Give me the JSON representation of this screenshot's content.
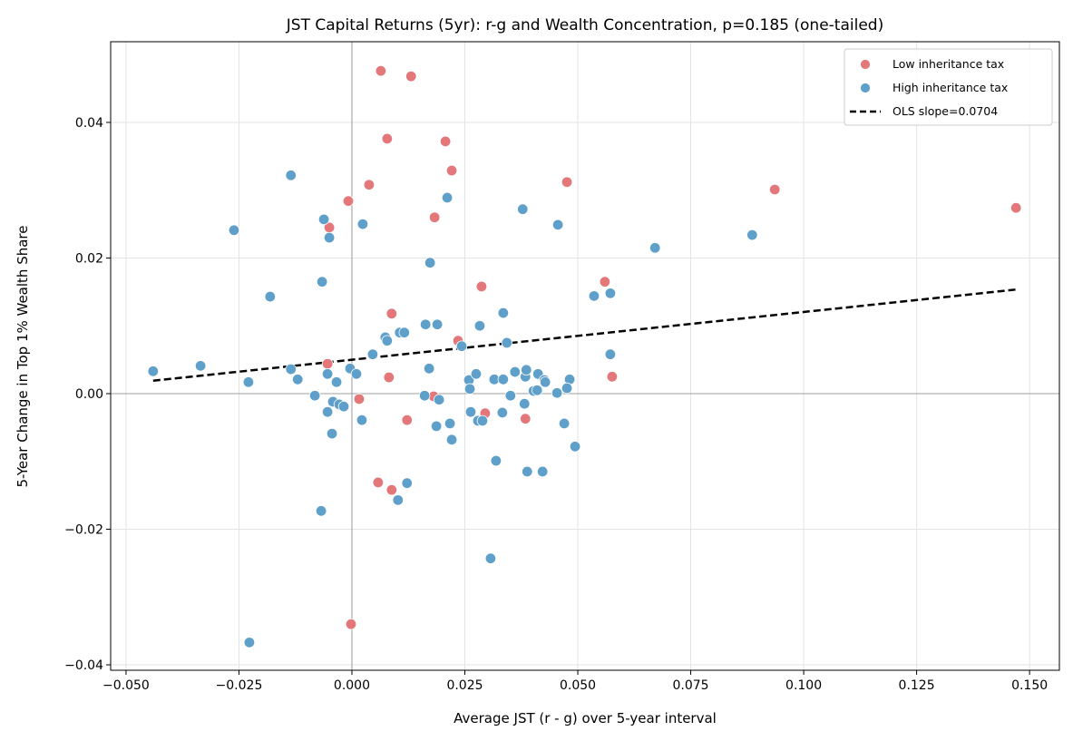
{
  "chart_data": {
    "type": "scatter",
    "title": "JST Capital Returns (5yr): r-g and Wealth Concentration, p=0.185 (one-tailed)",
    "xlabel": "Average JST (r - g) over 5-year interval",
    "ylabel": "5-Year Change in Top 1% Wealth Share",
    "xlim": [
      -0.0534,
      0.1566
    ],
    "ylim": [
      -0.0408,
      0.0519
    ],
    "xticks": [
      "−0.050",
      "−0.025",
      "0.000",
      "0.025",
      "0.050",
      "0.075",
      "0.100",
      "0.125",
      "0.150"
    ],
    "xtick_values": [
      -0.05,
      -0.025,
      0,
      0.025,
      0.05,
      0.075,
      0.1,
      0.125,
      0.15
    ],
    "yticks": [
      "−0.04",
      "−0.02",
      "0.00",
      "0.02",
      "0.04"
    ],
    "ytick_values": [
      -0.04,
      -0.02,
      0,
      0.02,
      0.04
    ],
    "grid": true,
    "legend_position": "top-right",
    "series": [
      {
        "name": "Low inheritance tax",
        "color": "#e3777a",
        "points": [
          [
            0.0064,
            0.0476
          ],
          [
            0.0131,
            0.0468
          ],
          [
            0.0078,
            0.0376
          ],
          [
            0.0207,
            0.0372
          ],
          [
            0.0221,
            0.0329
          ],
          [
            0.0476,
            0.0312
          ],
          [
            0.0038,
            0.0308
          ],
          [
            0.0936,
            0.0301
          ],
          [
            0.147,
            0.0274
          ],
          [
            0.0183,
            0.026
          ],
          [
            -0.0008,
            0.0284
          ],
          [
            -0.005,
            0.0245
          ],
          [
            0.056,
            0.0165
          ],
          [
            0.0287,
            0.0158
          ],
          [
            0.0088,
            0.0118
          ],
          [
            0.0235,
            0.0078
          ],
          [
            -0.0054,
            0.0044
          ],
          [
            0.0082,
            0.0024
          ],
          [
            0.0576,
            0.0025
          ],
          [
            0.0016,
            -0.0008
          ],
          [
            0.0181,
            -0.0004
          ],
          [
            0.0122,
            -0.0039
          ],
          [
            0.0295,
            -0.0029
          ],
          [
            0.0384,
            -0.0037
          ],
          [
            0.0058,
            -0.0131
          ],
          [
            0.0088,
            -0.0142
          ],
          [
            -0.0002,
            -0.034
          ]
        ]
      },
      {
        "name": "High inheritance tax",
        "color": "#5fa0cb",
        "points": [
          [
            -0.0135,
            0.0322
          ],
          [
            -0.0261,
            0.0241
          ],
          [
            -0.0062,
            0.0257
          ],
          [
            0.0024,
            0.025
          ],
          [
            -0.005,
            0.023
          ],
          [
            0.0211,
            0.0289
          ],
          [
            0.0378,
            0.0272
          ],
          [
            0.0456,
            0.0249
          ],
          [
            0.0671,
            0.0215
          ],
          [
            0.0886,
            0.0234
          ],
          [
            0.0173,
            0.0193
          ],
          [
            -0.0181,
            0.0143
          ],
          [
            -0.0066,
            0.0165
          ],
          [
            0.0536,
            0.0144
          ],
          [
            0.0572,
            0.0148
          ],
          [
            0.0335,
            0.0119
          ],
          [
            0.0163,
            0.0102
          ],
          [
            0.0189,
            0.0102
          ],
          [
            0.0283,
            0.01
          ],
          [
            0.0106,
            0.009
          ],
          [
            0.0116,
            0.009
          ],
          [
            0.0074,
            0.0083
          ],
          [
            0.0078,
            0.0078
          ],
          [
            0.0243,
            0.007
          ],
          [
            0.0343,
            0.0075
          ],
          [
            0.0046,
            0.0058
          ],
          [
            0.0572,
            0.0058
          ],
          [
            -0.044,
            0.0033
          ],
          [
            -0.0335,
            0.0041
          ],
          [
            -0.0135,
            0.0036
          ],
          [
            -0.0229,
            0.0017
          ],
          [
            -0.012,
            0.0021
          ],
          [
            -0.0054,
            0.0029
          ],
          [
            -0.0004,
            0.0037
          ],
          [
            0.001,
            0.0029
          ],
          [
            -0.0034,
            0.0017
          ],
          [
            0.0171,
            0.0037
          ],
          [
            0.0259,
            0.002
          ],
          [
            0.0275,
            0.0029
          ],
          [
            0.0315,
            0.0021
          ],
          [
            0.0335,
            0.0021
          ],
          [
            0.0361,
            0.0032
          ],
          [
            0.0384,
            0.0025
          ],
          [
            0.0386,
            0.0035
          ],
          [
            0.0412,
            0.0029
          ],
          [
            0.0426,
            0.002
          ],
          [
            0.0428,
            0.0017
          ],
          [
            0.0482,
            0.0021
          ],
          [
            0.0402,
            0.0004
          ],
          [
            0.041,
            0.0005
          ],
          [
            0.0454,
            0.0001
          ],
          [
            0.0476,
            0.0008
          ],
          [
            0.0261,
            0.0007
          ],
          [
            -0.0082,
            -0.0003
          ],
          [
            0.0161,
            -0.0003
          ],
          [
            0.0351,
            -0.0003
          ],
          [
            -0.0042,
            -0.0012
          ],
          [
            -0.0028,
            -0.0016
          ],
          [
            -0.0018,
            -0.0019
          ],
          [
            0.0193,
            -0.0009
          ],
          [
            -0.0054,
            -0.0027
          ],
          [
            0.0263,
            -0.0027
          ],
          [
            0.0333,
            -0.0028
          ],
          [
            0.0382,
            -0.0015
          ],
          [
            0.0022,
            -0.0039
          ],
          [
            0.0217,
            -0.0044
          ],
          [
            0.0187,
            -0.0048
          ],
          [
            0.0279,
            -0.004
          ],
          [
            0.0289,
            -0.004
          ],
          [
            0.047,
            -0.0044
          ],
          [
            -0.0044,
            -0.0059
          ],
          [
            0.0221,
            -0.0068
          ],
          [
            0.0494,
            -0.0078
          ],
          [
            0.0319,
            -0.0099
          ],
          [
            0.0388,
            -0.0115
          ],
          [
            0.0422,
            -0.0115
          ],
          [
            0.0122,
            -0.0132
          ],
          [
            0.0102,
            -0.0157
          ],
          [
            -0.0068,
            -0.0173
          ],
          [
            0.0307,
            -0.0243
          ],
          [
            -0.0227,
            -0.0367
          ]
        ]
      }
    ],
    "fit_line": {
      "name": "OLS slope=0.0704",
      "slope": 0.0704,
      "intercept": 0.005,
      "x_range": [
        -0.044,
        0.147
      ],
      "color": "#000000",
      "style": "dashed"
    }
  }
}
